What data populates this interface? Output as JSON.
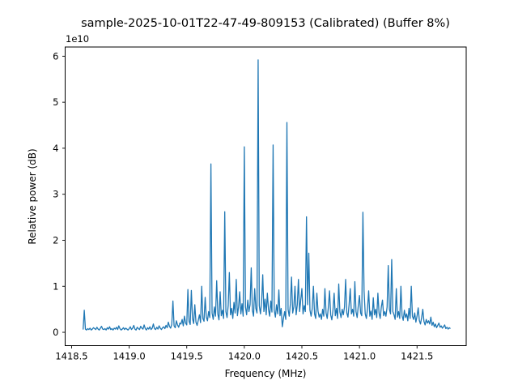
{
  "figure": {
    "background": "#ffffff",
    "text_color": "#000000",
    "spine_color": "#000000"
  },
  "chart_data": {
    "type": "line",
    "title": "sample-2025-10-01T22-47-49-809153 (Calibrated) (Buffer 8%)",
    "xlabel": "Frequency (MHz)",
    "ylabel": "Relative power (dB)",
    "offset_text": "1e10",
    "line_color": "#1f77b4",
    "grid": false,
    "legend": null,
    "xlim": [
      1418.444,
      1421.927
    ],
    "ylim_e10": [
      -0.29,
      6.2
    ],
    "x_ticks": [
      {
        "v": 1418.5,
        "label": "1418.5"
      },
      {
        "v": 1419.0,
        "label": "1419.0"
      },
      {
        "v": 1419.5,
        "label": "1419.5"
      },
      {
        "v": 1420.0,
        "label": "1420.0"
      },
      {
        "v": 1420.5,
        "label": "1420.5"
      },
      {
        "v": 1421.0,
        "label": "1421.0"
      },
      {
        "v": 1421.5,
        "label": "1421.5"
      }
    ],
    "y_ticks": [
      {
        "v": 0,
        "label": "0"
      },
      {
        "v": 1,
        "label": "1"
      },
      {
        "v": 2,
        "label": "2"
      },
      {
        "v": 3,
        "label": "3"
      },
      {
        "v": 4,
        "label": "4"
      },
      {
        "v": 5,
        "label": "5"
      },
      {
        "v": 6,
        "label": "6"
      }
    ],
    "major_peaks_e10": [
      {
        "freq": 1419.71,
        "value": 3.66
      },
      {
        "freq": 1419.83,
        "value": 2.62
      },
      {
        "freq": 1420.0,
        "value": 4.03
      },
      {
        "freq": 1420.12,
        "value": 5.92
      },
      {
        "freq": 1420.25,
        "value": 4.07
      },
      {
        "freq": 1420.37,
        "value": 4.56
      },
      {
        "freq": 1420.54,
        "value": 2.51
      },
      {
        "freq": 1421.03,
        "value": 2.61
      }
    ],
    "series": {
      "name": "spectrum",
      "unit_multiplier": 10000000000.0,
      "x_start": 1418.6,
      "x_step": 0.01,
      "values_e10": [
        0.06,
        0.48,
        0.07,
        0.05,
        0.08,
        0.06,
        0.09,
        0.05,
        0.07,
        0.1,
        0.08,
        0.06,
        0.11,
        0.07,
        0.05,
        0.09,
        0.13,
        0.07,
        0.06,
        0.08,
        0.05,
        0.1,
        0.07,
        0.12,
        0.06,
        0.08,
        0.05,
        0.09,
        0.07,
        0.11,
        0.06,
        0.14,
        0.08,
        0.05,
        0.07,
        0.1,
        0.06,
        0.09,
        0.07,
        0.05,
        0.08,
        0.12,
        0.06,
        0.09,
        0.15,
        0.07,
        0.05,
        0.11,
        0.08,
        0.06,
        0.13,
        0.09,
        0.07,
        0.16,
        0.08,
        0.05,
        0.1,
        0.07,
        0.12,
        0.06,
        0.09,
        0.18,
        0.08,
        0.06,
        0.11,
        0.07,
        0.14,
        0.09,
        0.06,
        0.1,
        0.12,
        0.08,
        0.15,
        0.1,
        0.22,
        0.13,
        0.09,
        0.17,
        0.68,
        0.14,
        0.1,
        0.25,
        0.16,
        0.11,
        0.2,
        0.18,
        0.28,
        0.14,
        0.35,
        0.2,
        0.16,
        0.93,
        0.24,
        0.17,
        0.91,
        0.3,
        0.19,
        0.6,
        0.22,
        0.15,
        0.26,
        0.38,
        0.21,
        1.0,
        0.3,
        0.24,
        0.76,
        0.33,
        0.25,
        0.45,
        0.32,
        3.66,
        0.42,
        0.28,
        0.55,
        0.35,
        1.12,
        0.4,
        0.27,
        0.88,
        0.36,
        0.48,
        0.3,
        2.62,
        0.45,
        0.32,
        0.58,
        1.3,
        0.38,
        0.52,
        0.3,
        0.65,
        0.42,
        1.15,
        0.36,
        0.55,
        0.88,
        0.4,
        0.62,
        0.35,
        4.03,
        0.55,
        0.38,
        0.7,
        0.45,
        0.6,
        1.4,
        0.48,
        0.35,
        0.95,
        0.52,
        0.42,
        5.92,
        0.58,
        0.4,
        0.65,
        1.25,
        0.45,
        0.72,
        0.38,
        0.85,
        0.5,
        0.35,
        0.68,
        0.44,
        4.07,
        0.48,
        0.33,
        0.6,
        0.4,
        0.92,
        0.36,
        0.52,
        0.12,
        0.3,
        0.45,
        0.28,
        4.56,
        0.5,
        0.35,
        0.62,
        1.2,
        0.42,
        0.55,
        1.0,
        0.38,
        0.6,
        1.15,
        0.45,
        0.7,
        0.95,
        0.4,
        0.58,
        0.45,
        2.51,
        0.6,
        1.72,
        0.48,
        0.35,
        0.52,
        1.0,
        0.4,
        0.3,
        0.85,
        0.46,
        0.33,
        0.4,
        0.28,
        0.5,
        0.35,
        0.95,
        0.42,
        0.3,
        0.55,
        0.9,
        0.38,
        0.27,
        0.48,
        0.85,
        0.36,
        0.52,
        0.3,
        1.05,
        0.44,
        0.32,
        0.5,
        0.38,
        0.55,
        1.15,
        0.42,
        0.33,
        0.6,
        0.95,
        0.4,
        0.5,
        0.35,
        1.1,
        0.45,
        0.32,
        0.58,
        0.8,
        0.42,
        0.36,
        2.61,
        0.9,
        0.4,
        0.3,
        0.52,
        0.9,
        0.35,
        0.46,
        0.28,
        0.75,
        0.38,
        0.5,
        0.32,
        0.85,
        0.42,
        0.3,
        0.55,
        0.7,
        0.36,
        0.45,
        0.35,
        0.55,
        1.45,
        0.5,
        0.4,
        1.58,
        0.45,
        0.38,
        0.28,
        0.95,
        0.33,
        0.45,
        0.3,
        1.0,
        0.36,
        0.26,
        0.48,
        0.32,
        0.4,
        0.25,
        0.52,
        0.3,
        1.0,
        0.35,
        0.28,
        0.42,
        0.22,
        0.35,
        0.53,
        0.26,
        0.18,
        0.32,
        0.5,
        0.24,
        0.16,
        0.28,
        0.2,
        0.25,
        0.18,
        0.33,
        0.15,
        0.22,
        0.12,
        0.18,
        0.1,
        0.15,
        0.2,
        0.11,
        0.14,
        0.09,
        0.12,
        0.16,
        0.08,
        0.11,
        0.07,
        0.1,
        0.08
      ]
    }
  }
}
